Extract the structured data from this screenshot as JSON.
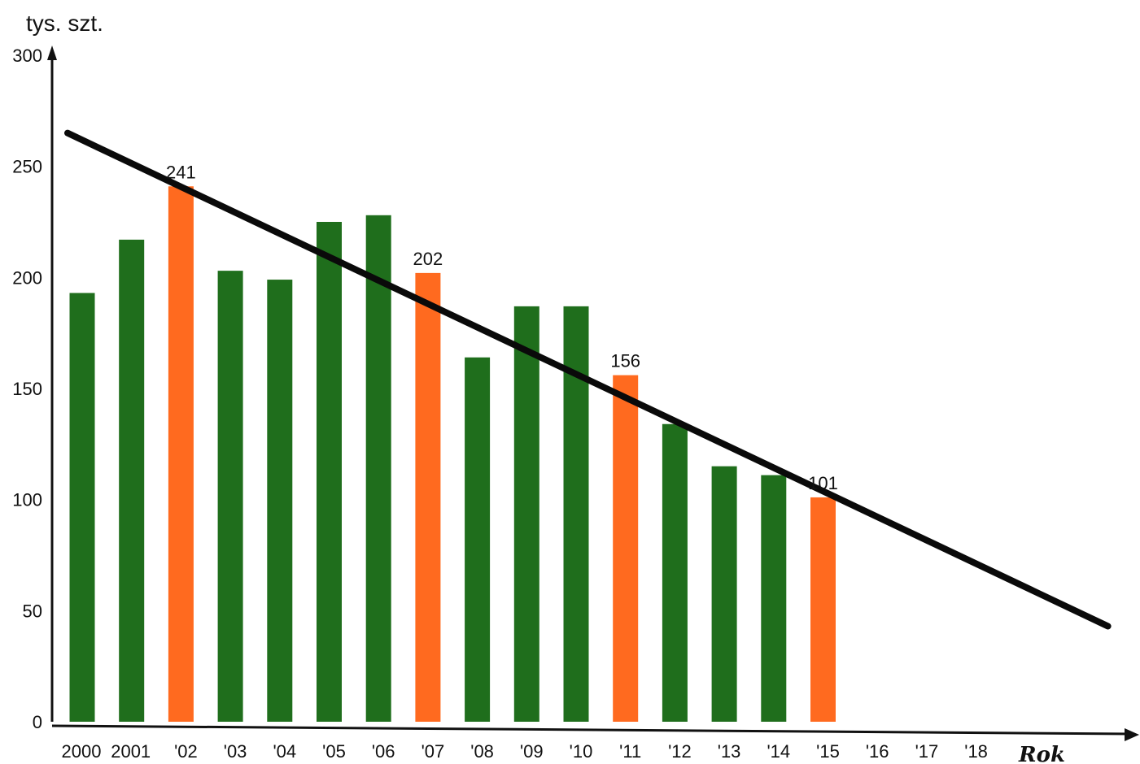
{
  "chart_data": {
    "type": "bar",
    "ylabel": "tys. szt.",
    "xlabel": "Rok",
    "ylim": [
      0,
      300
    ],
    "y_ticks": [
      "0",
      "50",
      "100",
      "150",
      "200",
      "250",
      "300"
    ],
    "categories": [
      "2000",
      "2001",
      "'02",
      "'03",
      "'04",
      "'05",
      "'06",
      "'07",
      "'08",
      "'09",
      "'10",
      "'11",
      "'12",
      "'13",
      "'14",
      "'15",
      "'16",
      "'17",
      "'18"
    ],
    "values": [
      193,
      217,
      241,
      203,
      199,
      225,
      228,
      202,
      164,
      187,
      187,
      156,
      134,
      115,
      111,
      101,
      null,
      null,
      null
    ],
    "highlight": [
      "",
      "",
      "241",
      "",
      "",
      "",
      "",
      "202",
      "",
      "",
      "",
      "156",
      "",
      "",
      "",
      "101",
      "",
      "",
      ""
    ],
    "trend_line": {
      "x": [
        "2000",
        "'18"
      ],
      "y": [
        265,
        43
      ]
    },
    "colors": {
      "bar": "#1f6e1c",
      "highlight_bar": "#ff6a1f",
      "trend": "#0a0a0a",
      "axis": "#111111"
    },
    "legend": "none",
    "grid": false
  }
}
